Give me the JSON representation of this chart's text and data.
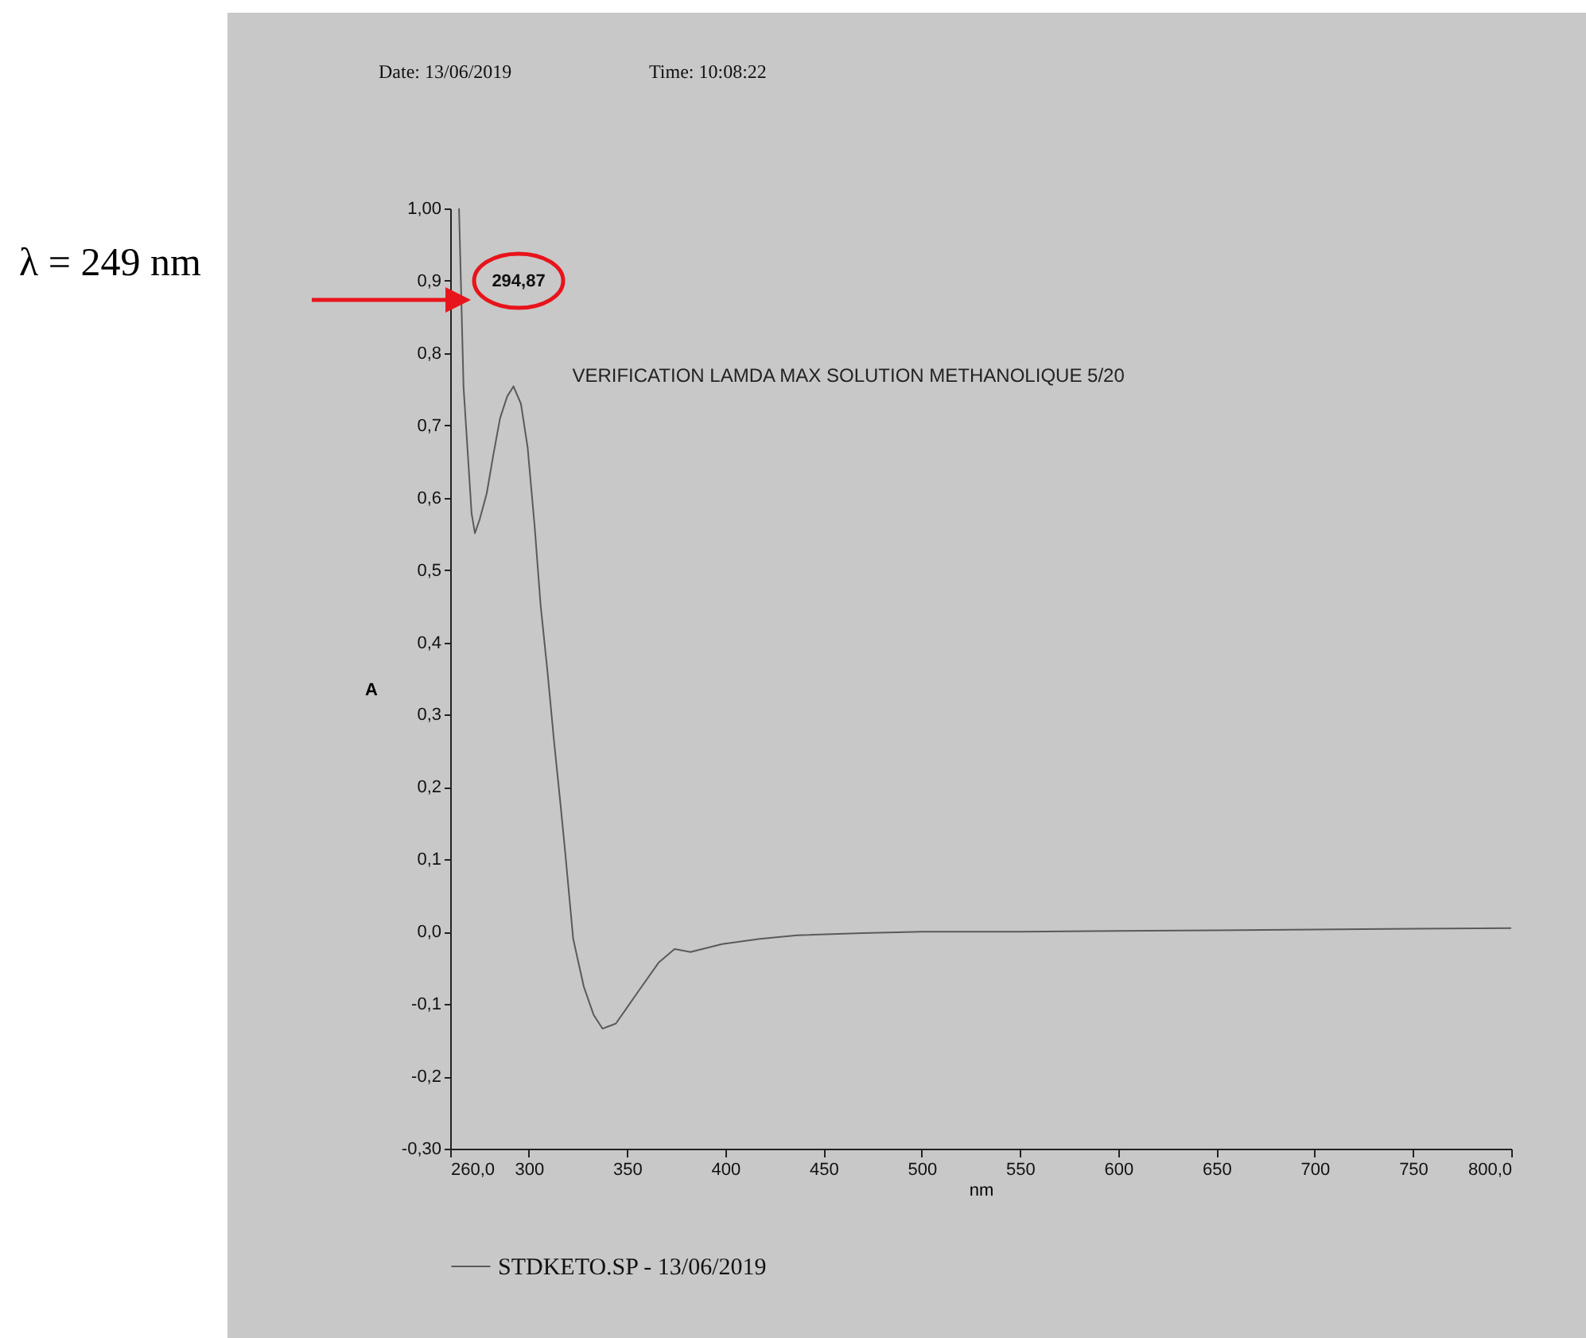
{
  "chart_data": {
    "type": "line",
    "title": "VERIFICATION LAMDA MAX SOLUTION METHANOLIQUE 5/20",
    "xlabel": "nm",
    "ylabel": "A",
    "annotations": [
      "Date: 13/06/2019",
      "Time: 10:08:22",
      "λ = 249 nm",
      "294,87"
    ],
    "x": [
      264.5,
      266.8,
      270.9,
      272.6,
      275,
      278.6,
      282,
      285.4,
      289,
      292.2,
      296,
      299.4,
      303,
      306,
      309.5,
      312.9,
      316,
      318.6,
      322.6,
      328,
      333,
      337.5,
      344.3,
      350,
      355.6,
      366,
      374.2,
      382.3,
      398.5,
      417.6,
      436.6,
      470,
      500,
      550,
      600,
      650,
      700,
      750,
      800
    ],
    "series": [
      {
        "name": "STDKETO.SP - 13/06/2019",
        "color": "#5a5a5a",
        "values": [
          1.0,
          0.753,
          0.578,
          0.551,
          0.57,
          0.606,
          0.66,
          0.71,
          0.74,
          0.754,
          0.73,
          0.67,
          0.56,
          0.452,
          0.36,
          0.262,
          0.18,
          0.108,
          -0.01,
          -0.076,
          -0.115,
          -0.134,
          -0.127,
          -0.105,
          -0.083,
          -0.043,
          -0.024,
          -0.028,
          -0.017,
          -0.01,
          -0.005,
          -0.002,
          0.0,
          0.0,
          0.001,
          0.002,
          0.003,
          0.004,
          0.005
        ]
      }
    ],
    "xlim": [
      260,
      800
    ],
    "xticks": [
      {
        "value": 260,
        "label": "260,0"
      },
      300,
      350,
      400,
      450,
      500,
      550,
      600,
      650,
      700,
      750,
      {
        "value": 800,
        "label": "800,0"
      }
    ],
    "ylim": [
      -0.3,
      1.0
    ],
    "yticks": [
      {
        "value": -0.3,
        "label": "-0,30"
      },
      {
        "value": -0.2,
        "label": "-0,2"
      },
      {
        "value": -0.1,
        "label": "-0,1"
      },
      {
        "value": 0,
        "label": "0,0"
      },
      {
        "value": 0.1,
        "label": "0,1"
      },
      {
        "value": 0.2,
        "label": "0,2"
      },
      {
        "value": 0.3,
        "label": "0,3"
      },
      {
        "value": 0.4,
        "label": "0,4"
      },
      {
        "value": 0.5,
        "label": "0,5"
      },
      {
        "value": 0.6,
        "label": "0,6"
      },
      {
        "value": 0.7,
        "label": "0,7"
      },
      {
        "value": 0.8,
        "label": "0,8"
      },
      {
        "value": 0.9,
        "label": "0,9"
      },
      {
        "value": 1.0,
        "label": "1,00"
      }
    ],
    "grid": false,
    "legend": "bottom",
    "line_style": "solid",
    "marker": "none"
  }
}
